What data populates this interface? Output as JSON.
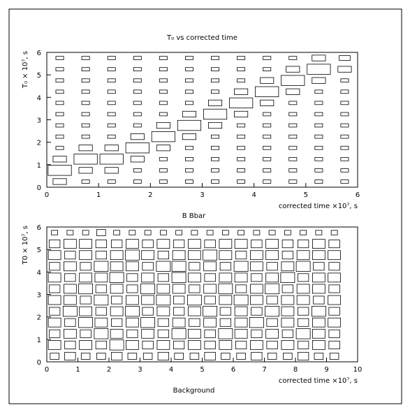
{
  "chart_data": [
    {
      "type": "box2d",
      "title": "T₀ vs corrected time",
      "subtitle": "B Bbar",
      "x_label": "corrected time ×10⁷, s",
      "y_label": "T₀ × 10⁷, s",
      "xlim": [
        0,
        6
      ],
      "ylim": [
        0,
        6
      ],
      "xticks": [
        0,
        1,
        2,
        3,
        4,
        5,
        6
      ],
      "yticks": [
        0,
        1,
        2,
        3,
        4,
        5,
        6
      ],
      "xbins": [
        0,
        0.5,
        1,
        1.5,
        2,
        2.5,
        3,
        3.5,
        4,
        4.5,
        5,
        5.5,
        6
      ],
      "ybins": [
        0,
        0.5,
        1,
        1.5,
        2,
        2.5,
        3,
        3.5,
        4,
        4.5,
        5,
        5.5,
        6
      ],
      "counts": [
        [
          3,
          1,
          1,
          1,
          1,
          1,
          1,
          1,
          1,
          1,
          1,
          1
        ],
        [
          9,
          3,
          3,
          1,
          1,
          1,
          1,
          1,
          1,
          1,
          1,
          1
        ],
        [
          3,
          9,
          9,
          3,
          1,
          1,
          1,
          1,
          1,
          1,
          1,
          1
        ],
        [
          1,
          3,
          3,
          9,
          3,
          1,
          1,
          1,
          1,
          1,
          1,
          1
        ],
        [
          1,
          1,
          1,
          3,
          9,
          3,
          1,
          1,
          1,
          1,
          1,
          1
        ],
        [
          1,
          1,
          1,
          1,
          3,
          9,
          3,
          1,
          1,
          1,
          1,
          1
        ],
        [
          1,
          1,
          1,
          1,
          1,
          3,
          9,
          3,
          1,
          1,
          1,
          1
        ],
        [
          1,
          1,
          1,
          1,
          1,
          1,
          3,
          9,
          3,
          1,
          1,
          1
        ],
        [
          1,
          1,
          1,
          1,
          1,
          1,
          1,
          3,
          9,
          3,
          1,
          1
        ],
        [
          1,
          1,
          1,
          1,
          1,
          1,
          1,
          1,
          3,
          9,
          3,
          1
        ],
        [
          1,
          1,
          1,
          1,
          1,
          1,
          1,
          1,
          1,
          3,
          9,
          3
        ],
        [
          1,
          1,
          1,
          1,
          1,
          1,
          1,
          1,
          1,
          1,
          3,
          2
        ]
      ]
    },
    {
      "type": "box2d",
      "subtitle": "Background",
      "x_label": "corrected time ×10⁷, s",
      "y_label": "T0 × 10⁷, s",
      "xlim": [
        0,
        10
      ],
      "ylim": [
        0,
        6
      ],
      "xticks": [
        0,
        1,
        2,
        3,
        4,
        5,
        6,
        7,
        8,
        9,
        10
      ],
      "yticks": [
        0,
        1,
        2,
        3,
        4,
        5,
        6
      ],
      "xbins": [
        0,
        0.5,
        1,
        1.5,
        2,
        2.5,
        3,
        3.5,
        4,
        4.5,
        5,
        5.5,
        6,
        6.5,
        7,
        7.5,
        8,
        8.5,
        9,
        9.5,
        10
      ],
      "ybins": [
        0,
        0.5,
        1,
        1.5,
        2,
        2.5,
        3,
        3.5,
        4,
        4.5,
        5,
        5.5,
        6
      ],
      "counts": [
        [
          2,
          3,
          2,
          2,
          3,
          2,
          2,
          3,
          2,
          2,
          3,
          2,
          2,
          3,
          2,
          2,
          3,
          2,
          2,
          0
        ],
        [
          4,
          3,
          4,
          3,
          5,
          4,
          3,
          4,
          3,
          4,
          3,
          4,
          3,
          4,
          3,
          4,
          3,
          4,
          3,
          0
        ],
        [
          3,
          4,
          3,
          5,
          4,
          3,
          4,
          3,
          5,
          4,
          3,
          5,
          4,
          3,
          4,
          3,
          5,
          4,
          3,
          0
        ],
        [
          4,
          3,
          5,
          4,
          3,
          4,
          5,
          3,
          4,
          3,
          4,
          3,
          4,
          5,
          3,
          4,
          3,
          4,
          4,
          0
        ],
        [
          3,
          5,
          4,
          3,
          4,
          5,
          3,
          4,
          3,
          4,
          5,
          3,
          4,
          3,
          5,
          4,
          3,
          5,
          3,
          0
        ],
        [
          4,
          4,
          3,
          5,
          3,
          4,
          4,
          5,
          3,
          5,
          3,
          4,
          5,
          4,
          3,
          4,
          4,
          3,
          4,
          0
        ],
        [
          3,
          4,
          5,
          3,
          4,
          3,
          5,
          4,
          4,
          3,
          4,
          5,
          3,
          4,
          5,
          3,
          4,
          4,
          3,
          0
        ],
        [
          4,
          3,
          4,
          4,
          5,
          3,
          4,
          3,
          5,
          4,
          3,
          4,
          4,
          3,
          4,
          5,
          3,
          4,
          4,
          0
        ],
        [
          3,
          4,
          3,
          5,
          4,
          4,
          3,
          5,
          5,
          3,
          4,
          3,
          5,
          4,
          3,
          4,
          5,
          3,
          3,
          0
        ],
        [
          4,
          3,
          4,
          3,
          4,
          5,
          4,
          3,
          4,
          4,
          5,
          4,
          3,
          4,
          4,
          3,
          4,
          4,
          4,
          0
        ],
        [
          3,
          4,
          4,
          3,
          3,
          4,
          3,
          4,
          3,
          4,
          3,
          4,
          4,
          3,
          4,
          3,
          3,
          4,
          3,
          0
        ],
        [
          1,
          1,
          1,
          2,
          1,
          1,
          1,
          1,
          1,
          1,
          1,
          1,
          1,
          1,
          1,
          1,
          1,
          1,
          1,
          0
        ]
      ]
    }
  ]
}
